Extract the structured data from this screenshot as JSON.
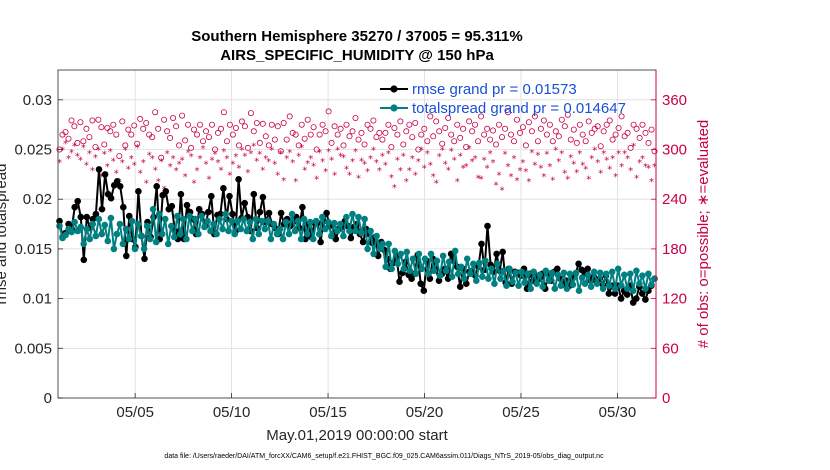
{
  "chart_data": {
    "type": "line",
    "title": "Southern Hemisphere 35270 / 37005 = 95.311%",
    "subtitle": "AIRS_SPECIFIC_HUMIDITY @ 150 hPa",
    "xlabel": "May.01,2019 00:00:00 start",
    "ylabel": "rmse and totalspread",
    "y2label": "# of obs: o=possible; ∗=evaluated",
    "footnote": "data file: /Users/raeder/DAI/ATM_forcXX/CAM6_setup/f.e21.FHIST_BGC.f09_025.CAM6assim.011/Diags_NTrS_2019-05/obs_diag_output.nc",
    "xlim": [
      1,
      32
    ],
    "ylim": [
      0,
      0.033
    ],
    "y2lim": [
      0,
      396
    ],
    "x_ticks": [
      {
        "label": "05/05",
        "x": 5
      },
      {
        "label": "05/10",
        "x": 10
      },
      {
        "label": "05/15",
        "x": 15
      },
      {
        "label": "05/20",
        "x": 20
      },
      {
        "label": "05/25",
        "x": 25
      },
      {
        "label": "05/30",
        "x": 30
      }
    ],
    "y_ticks": [
      {
        "label": "0",
        "v": 0
      },
      {
        "label": "0.005",
        "v": 0.005
      },
      {
        "label": "0.01",
        "v": 0.01
      },
      {
        "label": "0.015",
        "v": 0.015
      },
      {
        "label": "0.02",
        "v": 0.02
      },
      {
        "label": "0.025",
        "v": 0.025
      },
      {
        "label": "0.03",
        "v": 0.03
      }
    ],
    "y2_ticks": [
      {
        "label": "0",
        "v": 0
      },
      {
        "label": "60",
        "v": 60
      },
      {
        "label": "120",
        "v": 120
      },
      {
        "label": "180",
        "v": 180
      },
      {
        "label": "240",
        "v": 240
      },
      {
        "label": "300",
        "v": 300
      },
      {
        "label": "360",
        "v": 360
      }
    ],
    "grid": true,
    "legend_position": "top-right",
    "colors": {
      "rmse": "#000000",
      "spread": "#008080",
      "obs": "#c8004b"
    },
    "series": [
      {
        "name": "rmse grand pr = 0.01573",
        "axis": "left",
        "values": [
          0.0178,
          0.0162,
          0.0166,
          0.0175,
          0.017,
          0.0192,
          0.0198,
          0.0182,
          0.0139,
          0.0182,
          0.0171,
          0.018,
          0.0185,
          0.023,
          0.019,
          0.0225,
          0.0205,
          0.0201,
          0.0214,
          0.0218,
          0.0213,
          0.0192,
          0.0143,
          0.0183,
          0.016,
          0.0152,
          0.0208,
          0.0163,
          0.014,
          0.0177,
          0.0162,
          0.0182,
          0.0213,
          0.016,
          0.0204,
          0.0208,
          0.019,
          0.0193,
          0.0168,
          0.016,
          0.0205,
          0.016,
          0.0194,
          0.0187,
          0.018,
          0.0165,
          0.019,
          0.0185,
          0.0173,
          0.0187,
          0.0203,
          0.0165,
          0.0184,
          0.0185,
          0.0211,
          0.018,
          0.0203,
          0.0185,
          0.0168,
          0.022,
          0.0181,
          0.0196,
          0.0182,
          0.0168,
          0.0205,
          0.0171,
          0.0187,
          0.0202,
          0.0177,
          0.0186,
          0.0175,
          0.0171,
          0.0165,
          0.0186,
          0.0175,
          0.018,
          0.0173,
          0.0177,
          0.0182,
          0.0171,
          0.0192,
          0.016,
          0.0175,
          0.0162,
          0.0176,
          0.0176,
          0.0157,
          0.0178,
          0.0186,
          0.0173,
          0.0174,
          0.016,
          0.017,
          0.0172,
          0.0178,
          0.0173,
          0.0161,
          0.0172,
          0.0175,
          0.0165,
          0.0157,
          0.017,
          0.0165,
          0.0156,
          0.0162,
          0.0143,
          0.0157,
          0.0149,
          0.014,
          0.013,
          0.0136,
          0.0143,
          0.0117,
          0.0126,
          0.0137,
          0.0124,
          0.012,
          0.0125,
          0.0144,
          0.0115,
          0.0108,
          0.0138,
          0.012,
          0.014,
          0.013,
          0.0118,
          0.0125,
          0.013,
          0.012,
          0.0145,
          0.0138,
          0.0132,
          0.0112,
          0.013,
          0.0115,
          0.0127,
          0.0128,
          0.0123,
          0.0132,
          0.0155,
          0.0129,
          0.0173,
          0.0134,
          0.0127,
          0.0145,
          0.0128,
          0.0147,
          0.0116,
          0.013,
          0.0115,
          0.0127,
          0.0126,
          0.0123,
          0.013,
          0.011,
          0.0125,
          0.0118,
          0.0123,
          0.012,
          0.0125,
          0.011,
          0.0125,
          0.0118,
          0.0127,
          0.013,
          0.012,
          0.0114,
          0.0118,
          0.0113,
          0.012,
          0.0125,
          0.0135,
          0.0129,
          0.0125,
          0.013,
          0.0118,
          0.0122,
          0.0116,
          0.012,
          0.0114,
          0.0123,
          0.0105,
          0.0113,
          0.0105,
          0.0113,
          0.01,
          0.0108,
          0.0104,
          0.0113,
          0.0096,
          0.01,
          0.0112,
          0.0105,
          0.0099,
          0.0108,
          0.0113,
          0.012
        ]
      },
      {
        "name": "totalspread grand pr = 0.014647",
        "axis": "left",
        "values": [
          0.0173,
          0.0161,
          0.0164,
          0.017,
          0.0167,
          0.0177,
          0.0168,
          0.0172,
          0.0155,
          0.017,
          0.016,
          0.0175,
          0.0163,
          0.018,
          0.0165,
          0.0174,
          0.0158,
          0.0181,
          0.015,
          0.0165,
          0.0175,
          0.0155,
          0.017,
          0.016,
          0.0178,
          0.015,
          0.0175,
          0.0163,
          0.015,
          0.0173,
          0.016,
          0.019,
          0.0157,
          0.0185,
          0.0165,
          0.018,
          0.0155,
          0.0173,
          0.0162,
          0.0183,
          0.0165,
          0.018,
          0.016,
          0.0183,
          0.0168,
          0.018,
          0.0165,
          0.0183,
          0.0172,
          0.0178,
          0.0168,
          0.0175,
          0.0165,
          0.018,
          0.017,
          0.0185,
          0.0168,
          0.0178,
          0.0165,
          0.0178,
          0.017,
          0.018,
          0.0168,
          0.0177,
          0.016,
          0.018,
          0.0165,
          0.0178,
          0.017,
          0.0178,
          0.016,
          0.0175,
          0.0165,
          0.017,
          0.016,
          0.0177,
          0.0165,
          0.0185,
          0.0168,
          0.0178,
          0.016,
          0.018,
          0.0165,
          0.0177,
          0.016,
          0.0178,
          0.0165,
          0.0182,
          0.017,
          0.0177,
          0.0163,
          0.0176,
          0.0168,
          0.0175,
          0.0163,
          0.0182,
          0.0168,
          0.0185,
          0.0168,
          0.0182,
          0.0166,
          0.018,
          0.015,
          0.0168,
          0.0145,
          0.0163,
          0.015,
          0.0155,
          0.0132,
          0.0155,
          0.013,
          0.0148,
          0.0135,
          0.0145,
          0.013,
          0.0147,
          0.0128,
          0.014,
          0.0125,
          0.0145,
          0.013,
          0.014,
          0.0125,
          0.0145,
          0.0128,
          0.0138,
          0.0123,
          0.0143,
          0.0128,
          0.0137,
          0.0122,
          0.0148,
          0.0125,
          0.0132,
          0.012,
          0.014,
          0.0125,
          0.0135,
          0.0118,
          0.0136,
          0.0122,
          0.0138,
          0.012,
          0.013,
          0.0115,
          0.0135,
          0.012,
          0.0128,
          0.0113,
          0.013,
          0.0117,
          0.0126,
          0.0113,
          0.0127,
          0.0116,
          0.0125,
          0.011,
          0.0127,
          0.0115,
          0.0124,
          0.0112,
          0.0128,
          0.0118,
          0.0126,
          0.011,
          0.0124,
          0.0113,
          0.0126,
          0.011,
          0.0125,
          0.0114,
          0.0126,
          0.0108,
          0.0121,
          0.0115,
          0.0124,
          0.0112,
          0.0127,
          0.0115,
          0.0126,
          0.011,
          0.0125,
          0.0113,
          0.0127,
          0.011,
          0.013,
          0.0113,
          0.0124,
          0.011,
          0.0125,
          0.0108,
          0.0128,
          0.0115,
          0.0123,
          0.011,
          0.0125,
          0.0114,
          0.012
        ]
      },
      {
        "name": "possible",
        "axis": "right",
        "marker": "circle",
        "values": [
          300,
          318,
          321,
          313,
          335,
          328,
          308,
          333,
          310,
          325,
          315,
          335,
          303,
          336,
          327,
          306,
          326,
          322,
          330,
          318,
          292,
          334,
          305,
          324,
          318,
          329,
          307,
          337,
          325,
          332,
          318,
          315,
          345,
          325,
          290,
          336,
          322,
          314,
          338,
          328,
          305,
          341,
          311,
          330,
          302,
          324,
          318,
          330,
          310,
          322,
          315,
          330,
          300,
          320,
          325,
          345,
          310,
          330,
          318,
          326,
          305,
          334,
          328,
          302,
          344,
          322,
          332,
          308,
          331,
          316,
          305,
          330,
          312,
          328,
          298,
          332,
          312,
          340,
          320,
          318,
          305,
          330,
          313,
          336,
          318,
          327,
          300,
          318,
          330,
          322,
          346,
          308,
          328,
          318,
          325,
          305,
          330,
          316,
          322,
          338,
          312,
          320,
          306,
          330,
          325,
          335,
          315,
          320,
          312,
          320,
          330,
          303,
          326,
          318,
          334,
          306,
          322,
          330,
          315,
          332,
          300,
          318,
          325,
          310,
          340,
          316,
          334,
          322,
          307,
          326,
          338,
          318,
          310,
          330,
          314,
          325,
          303,
          334,
          322,
          330,
          310,
          340,
          318,
          325,
          312,
          323,
          306,
          330,
          315,
          325,
          345,
          318,
          310,
          336,
          320,
          327,
          305,
          333,
          322,
          340,
          310,
          325,
          335,
          318,
          330,
          310,
          322,
          316,
          336,
          328,
          342,
          312,
          324,
          308,
          330,
          318,
          310,
          334,
          320,
          325,
          328,
          304,
          322,
          330,
          335,
          312,
          318,
          326,
          340,
          316,
          320,
          302,
          330,
          325,
          314,
          330,
          320,
          308,
          324,
          298
        ]
      },
      {
        "name": "evaluated",
        "axis": "right",
        "marker": "asterisk",
        "values": [
          285,
          300,
          308,
          290,
          297,
          305,
          293,
          288,
          303,
          282,
          296,
          275,
          291,
          300,
          268,
          295,
          280,
          298,
          287,
          272,
          262,
          285,
          300,
          277,
          290,
          282,
          303,
          272,
          285,
          260,
          294,
          290,
          276,
          262,
          286,
          253,
          296,
          280,
          290,
          275,
          283,
          288,
          268,
          297,
          292,
          260,
          275,
          290,
          302,
          283,
          265,
          288,
          295,
          285,
          276,
          298,
          290,
          270,
          283,
          292,
          278,
          300,
          293,
          273,
          296,
          305,
          287,
          295,
          276,
          290,
          286,
          300,
          283,
          270,
          296,
          263,
          290,
          297,
          285,
          262,
          293,
          303,
          276,
          284,
          290,
          281,
          265,
          297,
          286,
          274,
          298,
          288,
          270,
          300,
          293,
          291,
          277,
          270,
          286,
          298,
          266,
          287,
          283,
          274,
          290,
          300,
          285,
          275,
          293,
          282,
          296,
          267,
          255,
          288,
          275,
          293,
          262,
          275,
          290,
          270,
          286,
          300,
          278,
          296,
          282,
          268,
          260,
          292,
          300,
          283,
          276,
          299,
          288,
          262,
          293,
          278,
          280,
          302,
          286,
          290,
          266,
          265,
          288,
          278,
          296,
          285,
          258,
          270,
          252,
          295,
          280,
          268,
          290,
          263,
          275,
          285,
          274,
          262,
          297,
          282,
          294,
          278,
          268,
          295,
          280,
          264,
          300,
          286,
          296,
          272,
          265,
          291,
          283,
          273,
          296,
          282,
          277,
          265,
          290,
          300,
          285,
          272,
          296,
          288,
          277,
          290,
          268,
          296,
          280,
          296,
          290,
          275,
          305,
          266,
          285,
          290,
          280,
          278,
          262,
          280
        ]
      }
    ]
  }
}
